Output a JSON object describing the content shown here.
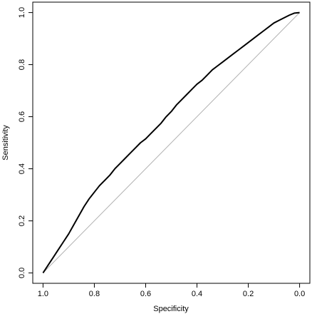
{
  "chart_data": {
    "type": "line",
    "title": "",
    "xlabel": "Specificity",
    "ylabel": "Sensitivity",
    "xlim": [
      1.04,
      -0.04
    ],
    "ylim": [
      -0.04,
      1.04
    ],
    "x_reversed": true,
    "x_ticks": [
      {
        "value": 1.0,
        "label": "1.0"
      },
      {
        "value": 0.8,
        "label": "0.8"
      },
      {
        "value": 0.6,
        "label": "0.6"
      },
      {
        "value": 0.4,
        "label": "0.4"
      },
      {
        "value": 0.2,
        "label": "0.2"
      },
      {
        "value": 0.0,
        "label": "0.0"
      }
    ],
    "y_ticks": [
      {
        "value": 0.0,
        "label": "0.0"
      },
      {
        "value": 0.2,
        "label": "0.2"
      },
      {
        "value": 0.4,
        "label": "0.4"
      },
      {
        "value": 0.6,
        "label": "0.6"
      },
      {
        "value": 0.8,
        "label": "0.8"
      },
      {
        "value": 1.0,
        "label": "1.0"
      }
    ],
    "grid": false,
    "reference_line": {
      "x": [
        1.0,
        0.0
      ],
      "y": [
        0.0,
        1.0
      ],
      "color": "#b0b0b0"
    },
    "series": [
      {
        "color": "#000000",
        "x": [
          1.0,
          0.98,
          0.96,
          0.94,
          0.92,
          0.9,
          0.88,
          0.86,
          0.84,
          0.82,
          0.8,
          0.78,
          0.76,
          0.74,
          0.72,
          0.7,
          0.68,
          0.66,
          0.64,
          0.62,
          0.6,
          0.58,
          0.56,
          0.54,
          0.52,
          0.5,
          0.48,
          0.46,
          0.44,
          0.42,
          0.4,
          0.38,
          0.36,
          0.34,
          0.32,
          0.3,
          0.28,
          0.26,
          0.24,
          0.22,
          0.2,
          0.18,
          0.16,
          0.14,
          0.12,
          0.1,
          0.08,
          0.06,
          0.04,
          0.02,
          0.0
        ],
        "y": [
          0.0,
          0.03,
          0.06,
          0.09,
          0.12,
          0.15,
          0.185,
          0.22,
          0.255,
          0.285,
          0.31,
          0.335,
          0.355,
          0.375,
          0.4,
          0.42,
          0.44,
          0.46,
          0.48,
          0.5,
          0.515,
          0.535,
          0.555,
          0.575,
          0.6,
          0.62,
          0.645,
          0.665,
          0.685,
          0.705,
          0.725,
          0.74,
          0.76,
          0.78,
          0.795,
          0.81,
          0.825,
          0.84,
          0.855,
          0.87,
          0.885,
          0.9,
          0.915,
          0.93,
          0.945,
          0.96,
          0.97,
          0.98,
          0.99,
          0.998,
          1.0
        ]
      }
    ]
  }
}
